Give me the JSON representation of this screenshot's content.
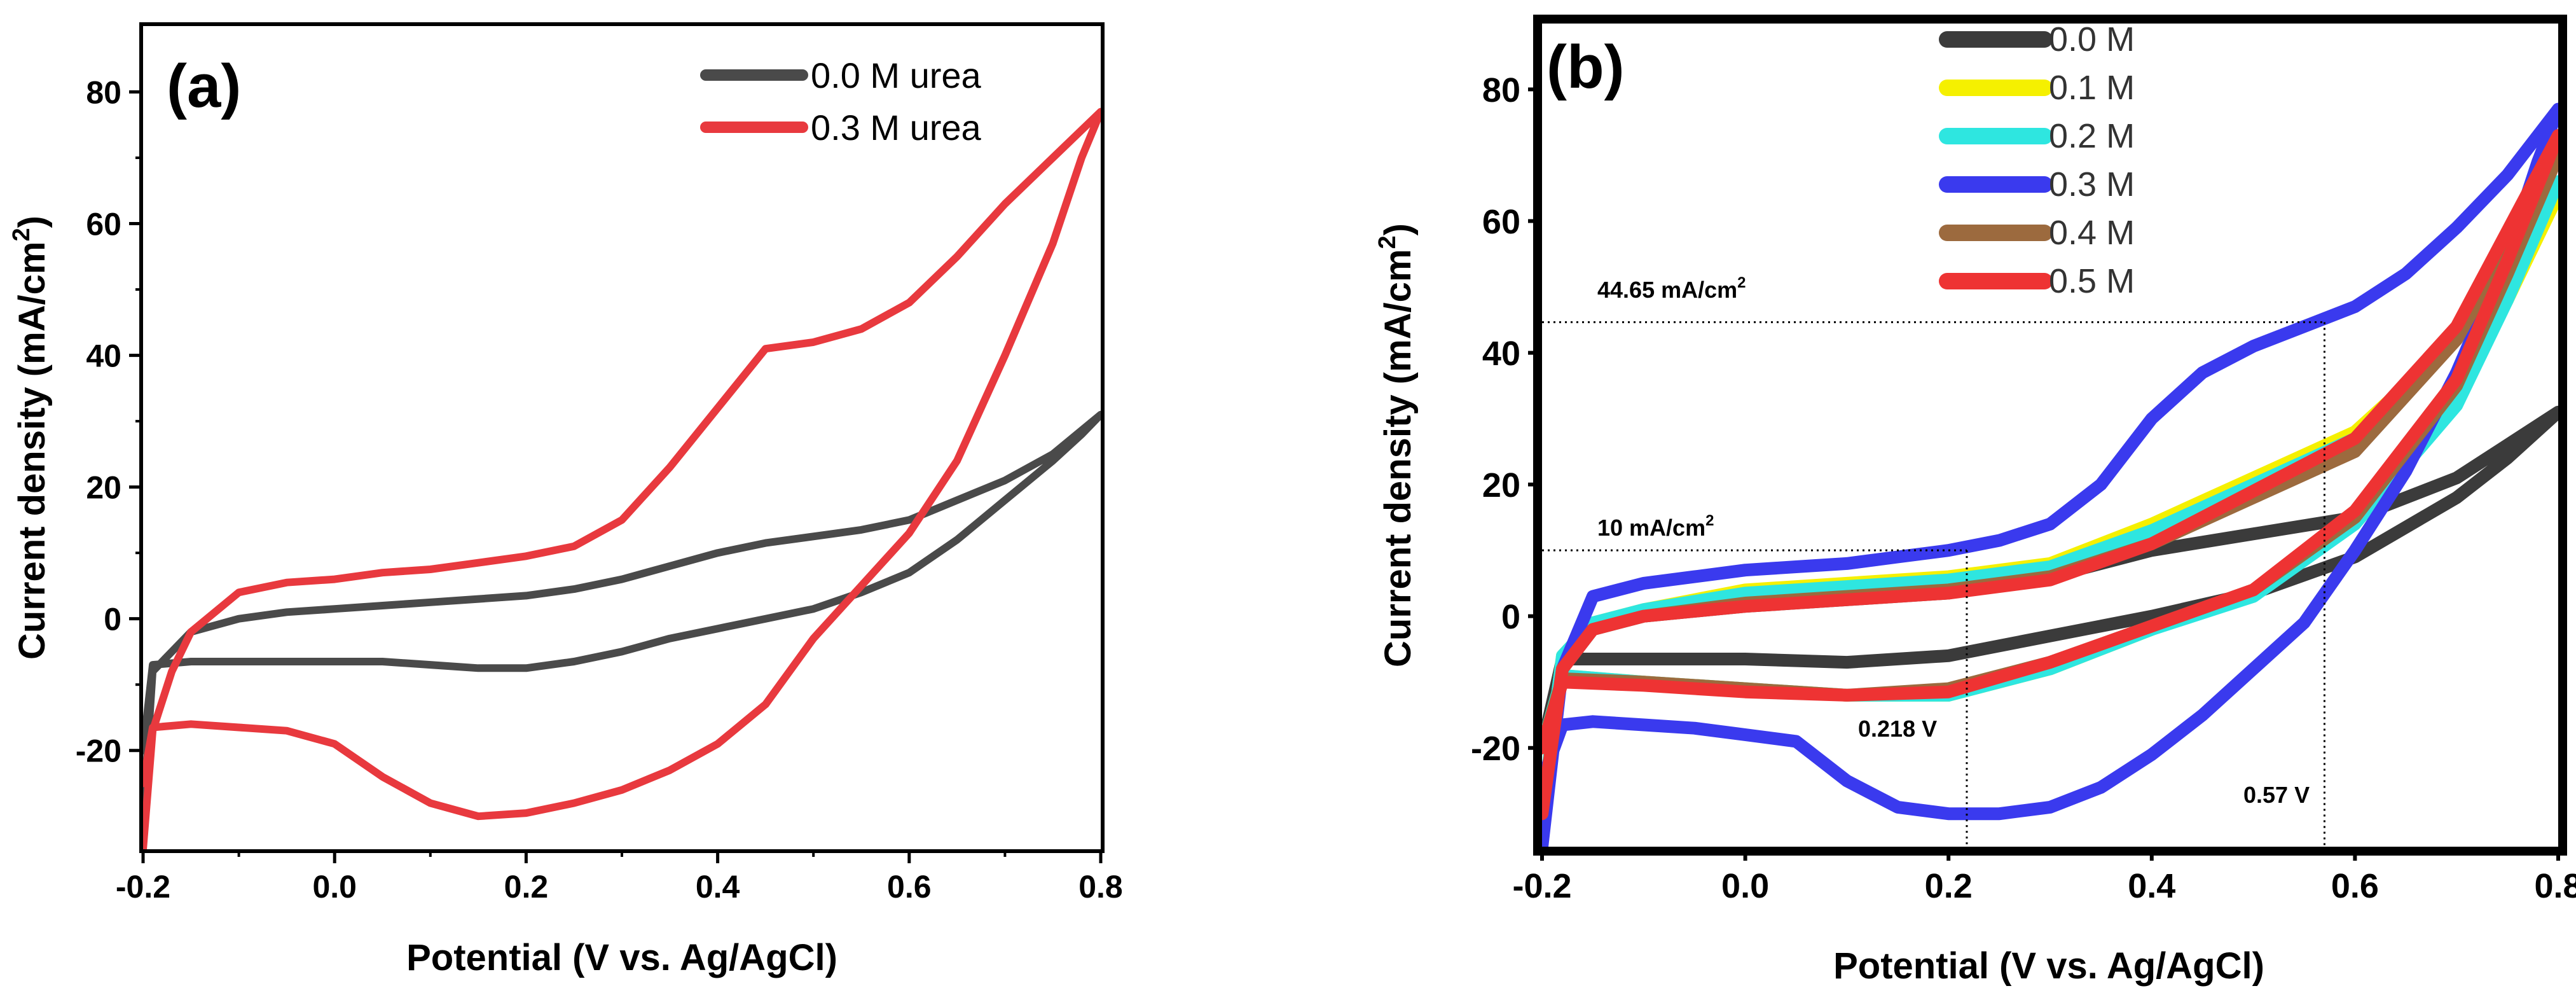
{
  "chart_data": [
    {
      "type": "line",
      "panel_label": "(a)",
      "xlabel": "Potential (V vs. Ag/AgCl)",
      "ylabel_main": "Current density (mA/cm",
      "ylabel_sup": "2",
      "ylabel_tail": ")",
      "xlim": [
        -0.2,
        0.8
      ],
      "ylim": [
        -35,
        90
      ],
      "xticks": [
        -0.2,
        0.0,
        0.2,
        0.4,
        0.6,
        0.8
      ],
      "xtick_labels": [
        "-0.2",
        "0.0",
        "0.2",
        "0.4",
        "0.6",
        "0.8"
      ],
      "yticks": [
        -20,
        0,
        20,
        40,
        60,
        80
      ],
      "ytick_labels": [
        "-20",
        "0",
        "20",
        "40",
        "60",
        "80"
      ],
      "legend_position": "top-right",
      "series": [
        {
          "name": "0.0 M urea",
          "color": "#4a4a4a",
          "x": [
            -0.2,
            -0.19,
            -0.15,
            -0.1,
            -0.05,
            0.0,
            0.05,
            0.1,
            0.15,
            0.2,
            0.25,
            0.3,
            0.35,
            0.4,
            0.45,
            0.5,
            0.55,
            0.6,
            0.65,
            0.7,
            0.75,
            0.8,
            0.78,
            0.75,
            0.7,
            0.65,
            0.6,
            0.55,
            0.5,
            0.45,
            0.4,
            0.35,
            0.3,
            0.25,
            0.2,
            0.15,
            0.1,
            0.05,
            0.0,
            -0.05,
            -0.1,
            -0.15,
            -0.19,
            -0.2
          ],
          "y": [
            -30,
            -8,
            -2,
            0,
            1,
            1.5,
            2,
            2.5,
            3,
            3.5,
            4.5,
            6,
            8,
            10,
            11.5,
            12.5,
            13.5,
            15,
            18,
            21,
            25,
            31,
            28,
            24,
            18,
            12,
            7,
            4,
            1.5,
            0,
            -1.5,
            -3,
            -5,
            -6.5,
            -7.5,
            -7.5,
            -7,
            -6.5,
            -6.5,
            -6.5,
            -6.5,
            -6.5,
            -7,
            -20
          ]
        },
        {
          "name": "0.3 M urea",
          "color": "#e8393e",
          "x": [
            -0.2,
            -0.19,
            -0.17,
            -0.15,
            -0.1,
            -0.05,
            0.0,
            0.05,
            0.1,
            0.15,
            0.2,
            0.25,
            0.3,
            0.35,
            0.4,
            0.45,
            0.5,
            0.55,
            0.6,
            0.65,
            0.7,
            0.75,
            0.8,
            0.78,
            0.75,
            0.7,
            0.65,
            0.6,
            0.55,
            0.5,
            0.45,
            0.4,
            0.35,
            0.3,
            0.25,
            0.2,
            0.15,
            0.1,
            0.05,
            0.0,
            -0.05,
            -0.1,
            -0.15,
            -0.19,
            -0.2
          ],
          "y": [
            -35,
            -17,
            -8,
            -2,
            4,
            5.5,
            6,
            7,
            7.5,
            8.5,
            9.5,
            11,
            15,
            23,
            32,
            41,
            42,
            44,
            48,
            55,
            63,
            70,
            77,
            70,
            57,
            40,
            24,
            13,
            5,
            -3,
            -13,
            -19,
            -23,
            -26,
            -28,
            -29.5,
            -30,
            -28,
            -24,
            -19,
            -17,
            -16.5,
            -16,
            -16.5,
            -25
          ]
        }
      ]
    },
    {
      "type": "line",
      "panel_label": "(b)",
      "xlabel": "Potential (V vs. Ag/AgCl)",
      "ylabel_main": "Current density (mA/cm",
      "ylabel_sup": "2",
      "ylabel_tail": ")",
      "xlim": [
        -0.2,
        0.8
      ],
      "ylim": [
        -35,
        90
      ],
      "xticks": [
        -0.2,
        0.0,
        0.2,
        0.4,
        0.6,
        0.8
      ],
      "xtick_labels": [
        "-0.2",
        "0.0",
        "0.2",
        "0.4",
        "0.6",
        "0.8"
      ],
      "yticks": [
        -20,
        0,
        20,
        40,
        60,
        80
      ],
      "ytick_labels": [
        "-20",
        "0",
        "20",
        "40",
        "60",
        "80"
      ],
      "legend_position": "top-center",
      "series": [
        {
          "name": "0.0 M",
          "color": "#3b3b3b",
          "x": [
            -0.2,
            -0.18,
            -0.15,
            -0.1,
            0.0,
            0.1,
            0.2,
            0.3,
            0.4,
            0.5,
            0.6,
            0.7,
            0.8,
            0.75,
            0.7,
            0.6,
            0.5,
            0.4,
            0.3,
            0.2,
            0.1,
            0.0,
            -0.1,
            -0.18,
            -0.2
          ],
          "y": [
            -30,
            -8,
            -2,
            0,
            1.5,
            2.5,
            3.5,
            6,
            10,
            12.5,
            15,
            21,
            31,
            24,
            18,
            9,
            3.5,
            0,
            -3,
            -6,
            -7,
            -6.5,
            -6.5,
            -6.5,
            -20
          ]
        },
        {
          "name": "0.1 M",
          "color": "#f5f000",
          "x": [
            -0.2,
            -0.18,
            -0.15,
            -0.1,
            0.0,
            0.1,
            0.2,
            0.3,
            0.4,
            0.5,
            0.6,
            0.7,
            0.8,
            0.75,
            0.7,
            0.6,
            0.5,
            0.4,
            0.3,
            0.2,
            0.1,
            0.0,
            -0.1,
            -0.18,
            -0.2
          ],
          "y": [
            -30,
            -6,
            -1,
            1,
            4,
            5,
            6,
            8,
            14,
            21,
            28,
            42,
            64,
            48,
            33,
            15,
            4,
            -2,
            -8,
            -12,
            -12,
            -11,
            -10,
            -9,
            -20
          ]
        },
        {
          "name": "0.2 M",
          "color": "#2ee6e0",
          "x": [
            -0.2,
            -0.18,
            -0.15,
            -0.1,
            0.0,
            0.1,
            0.2,
            0.3,
            0.4,
            0.5,
            0.6,
            0.7,
            0.8,
            0.75,
            0.7,
            0.6,
            0.5,
            0.4,
            0.3,
            0.2,
            0.1,
            0.0,
            -0.1,
            -0.18,
            -0.2
          ],
          "y": [
            -30,
            -6,
            -1,
            1,
            3.5,
            4.5,
            5.5,
            7.5,
            13,
            20,
            27,
            42,
            66,
            48,
            32,
            14,
            3,
            -2,
            -8,
            -12,
            -12,
            -11,
            -10,
            -9,
            -20
          ]
        },
        {
          "name": "0.3 M",
          "color": "#3a3aee",
          "x": [
            -0.2,
            -0.18,
            -0.15,
            -0.1,
            -0.05,
            0.0,
            0.05,
            0.1,
            0.15,
            0.2,
            0.25,
            0.3,
            0.35,
            0.4,
            0.45,
            0.5,
            0.55,
            0.6,
            0.65,
            0.7,
            0.75,
            0.8,
            0.78,
            0.75,
            0.7,
            0.65,
            0.6,
            0.55,
            0.5,
            0.45,
            0.4,
            0.35,
            0.3,
            0.25,
            0.2,
            0.15,
            0.1,
            0.05,
            0.0,
            -0.05,
            -0.1,
            -0.15,
            -0.18,
            -0.2
          ],
          "y": [
            -35,
            -8,
            3,
            5,
            6,
            7,
            7.5,
            8,
            9,
            10,
            11.5,
            14,
            20,
            30,
            37,
            41,
            44,
            47,
            52,
            59,
            67,
            77,
            69,
            55,
            37,
            22,
            10,
            -1,
            -8,
            -15,
            -21,
            -26,
            -29,
            -30,
            -30,
            -29,
            -25,
            -19,
            -18,
            -17,
            -16.5,
            -16,
            -16.5,
            -25
          ]
        },
        {
          "name": "0.4 M",
          "color": "#9c6a3e",
          "x": [
            -0.2,
            -0.18,
            -0.15,
            -0.1,
            0.0,
            0.1,
            0.2,
            0.3,
            0.4,
            0.5,
            0.6,
            0.7,
            0.8,
            0.75,
            0.7,
            0.6,
            0.5,
            0.4,
            0.3,
            0.2,
            0.1,
            0.0,
            -0.1,
            -0.18,
            -0.2
          ],
          "y": [
            -30,
            -8,
            -2,
            0,
            2,
            3,
            4,
            6,
            11,
            18,
            25,
            42,
            70,
            52,
            35,
            15,
            4,
            -1.5,
            -7,
            -11,
            -12,
            -11,
            -10,
            -9.5,
            -20
          ]
        },
        {
          "name": "0.5 M",
          "color": "#ee3333",
          "x": [
            -0.2,
            -0.18,
            -0.15,
            -0.1,
            0.0,
            0.1,
            0.2,
            0.3,
            0.4,
            0.5,
            0.6,
            0.7,
            0.8,
            0.75,
            0.7,
            0.6,
            0.5,
            0.4,
            0.3,
            0.2,
            0.1,
            0.0,
            -0.1,
            -0.18,
            -0.2
          ],
          "y": [
            -30,
            -8,
            -2,
            0,
            1.5,
            2.5,
            3.5,
            5.5,
            11,
            19,
            27,
            44,
            73,
            54,
            36,
            16,
            4,
            -1.5,
            -7,
            -11.5,
            -12,
            -11.5,
            -10.5,
            -10,
            -20
          ]
        }
      ],
      "annotations": [
        {
          "text": "44.65 mA/cm",
          "sup": "2"
        },
        {
          "text": "10 mA/cm",
          "sup": "2"
        },
        {
          "text": "0.218 V"
        },
        {
          "text": "0.57 V"
        }
      ],
      "reference_lines": {
        "h1_y": 44.65,
        "h1_xmax": 0.57,
        "h2_y": 10,
        "h2_xmax": 0.218,
        "v1_x": 0.218,
        "v1_ymax": 10,
        "v2_x": 0.57,
        "v2_ymax": 44.65
      }
    }
  ]
}
